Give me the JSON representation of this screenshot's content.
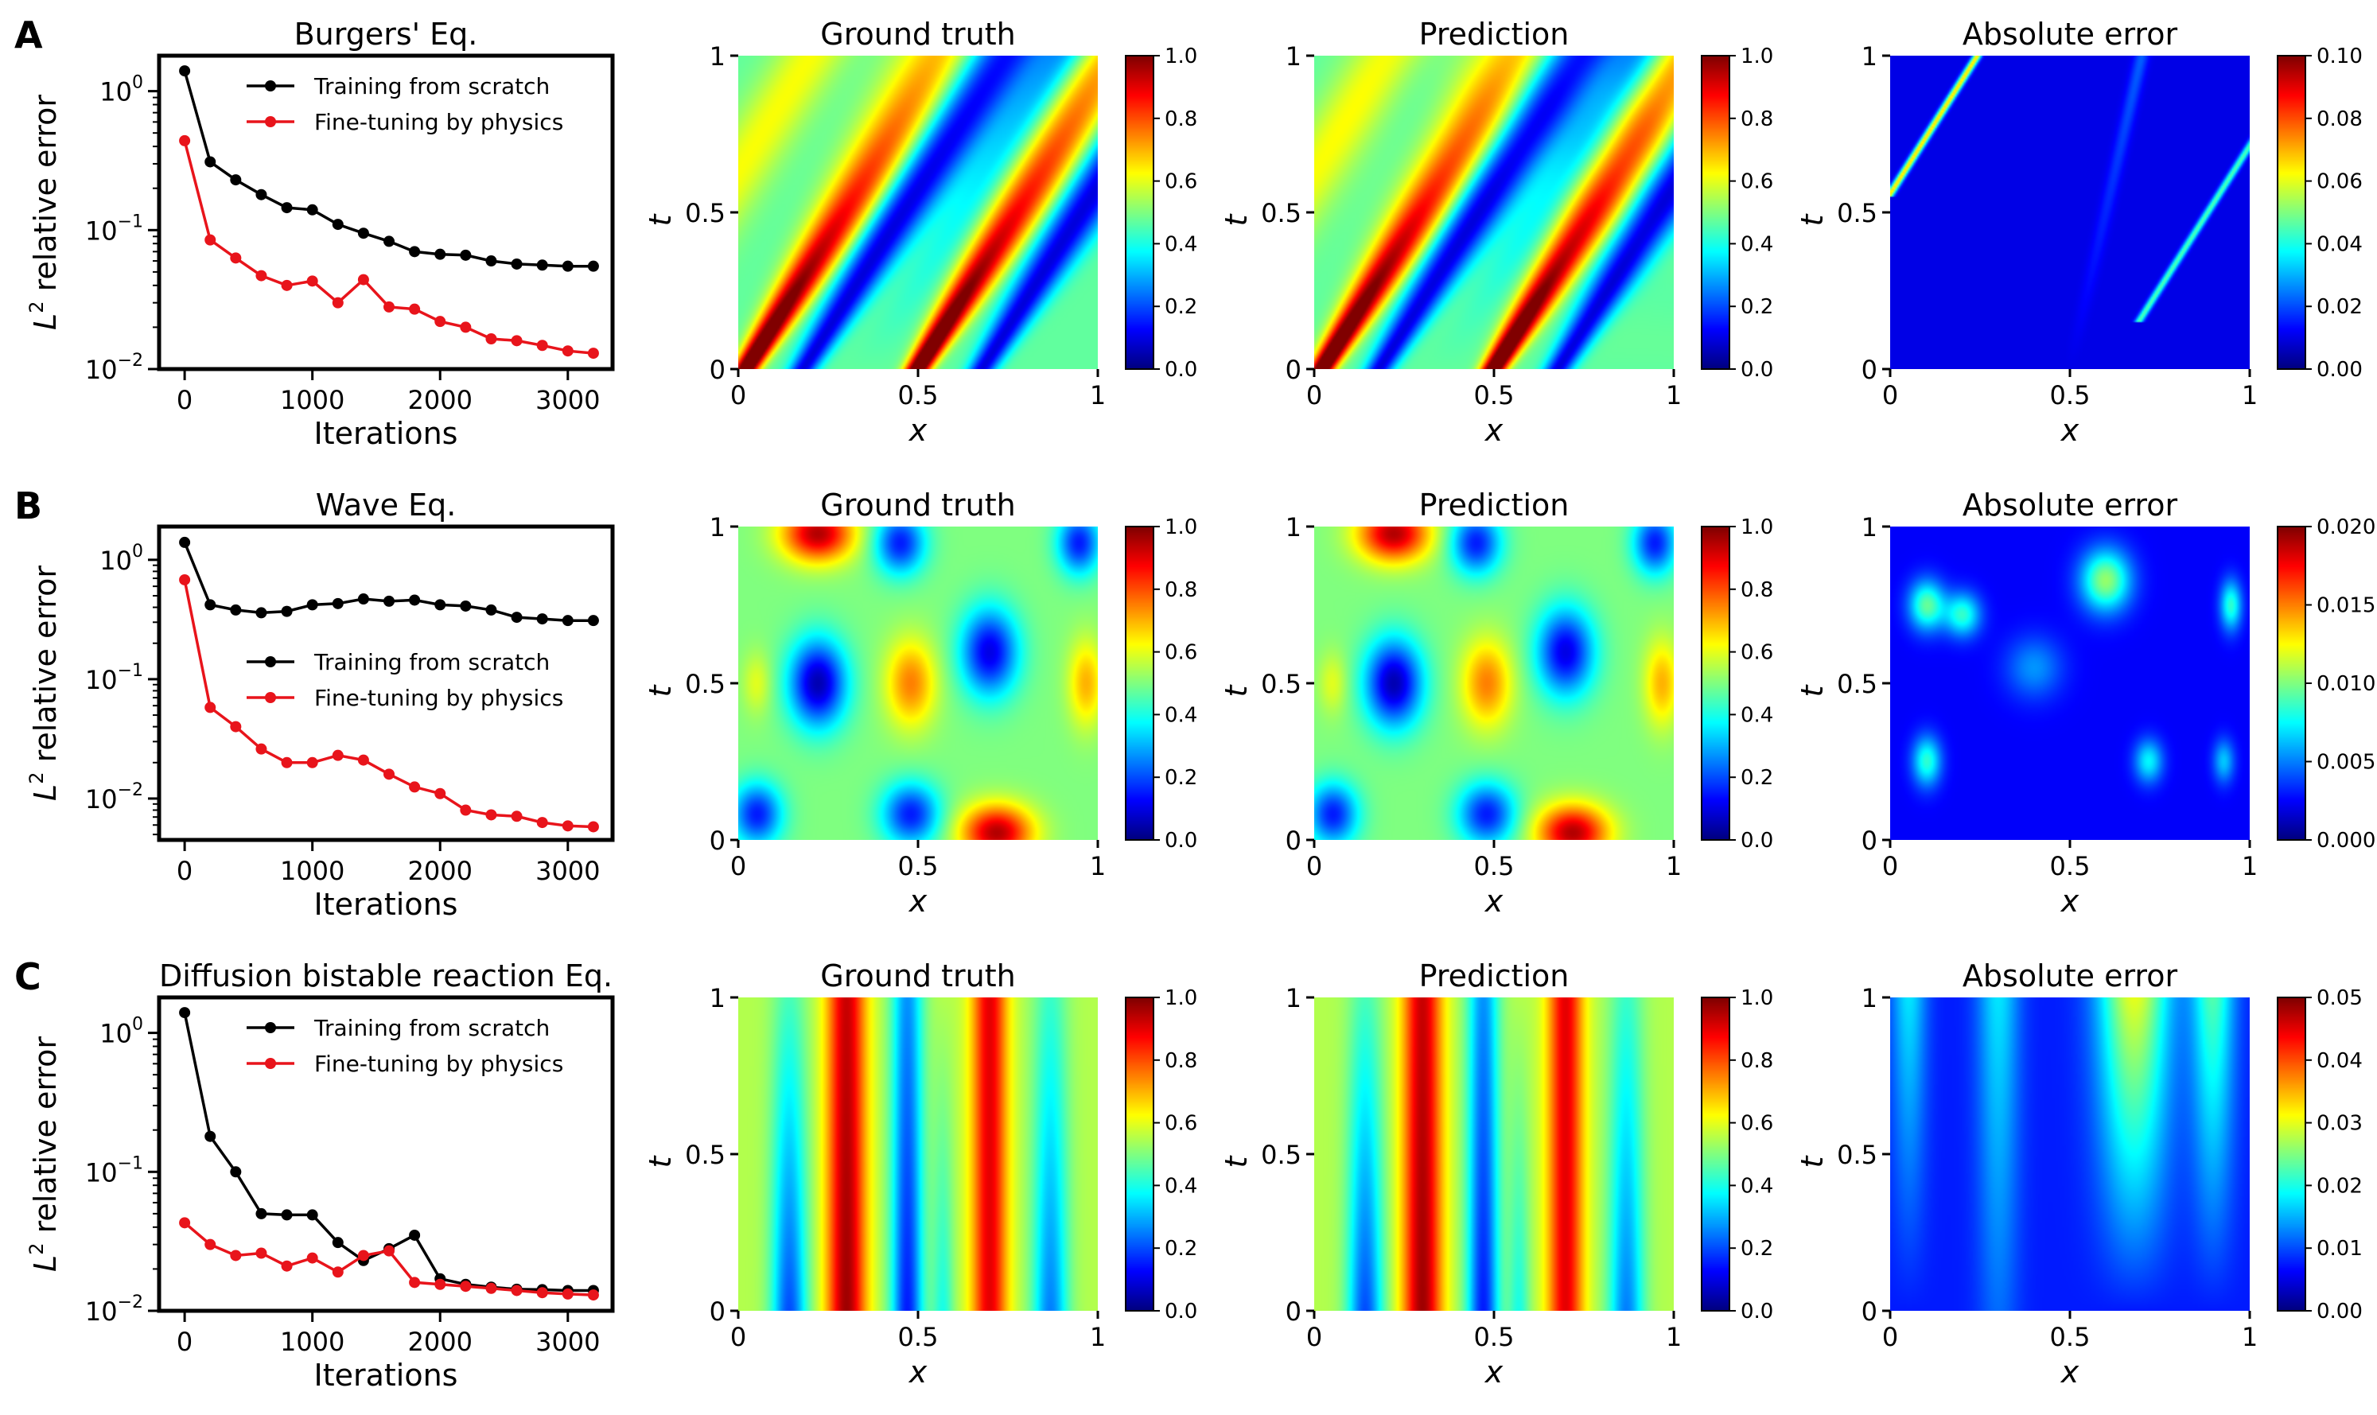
{
  "figure": {
    "rows": [
      {
        "letter": "A",
        "line_title": "Burgers' Eq.",
        "legend_pos": "top-right",
        "pattern": "burgers",
        "cbar_max": [
          1.0,
          1.0,
          0.1
        ],
        "cbar_ticks": [
          [
            "0.0",
            "0.2",
            "0.4",
            "0.6",
            "0.8",
            "1.0"
          ],
          [
            "0.0",
            "0.2",
            "0.4",
            "0.6",
            "0.8",
            "1.0"
          ],
          [
            "0.00",
            "0.02",
            "0.04",
            "0.06",
            "0.08",
            "0.10"
          ]
        ]
      },
      {
        "letter": "B",
        "line_title": "Wave Eq.",
        "legend_pos": "center-right",
        "pattern": "wave",
        "cbar_max": [
          1.0,
          1.0,
          0.02
        ],
        "cbar_ticks": [
          [
            "0.0",
            "0.2",
            "0.4",
            "0.6",
            "0.8",
            "1.0"
          ],
          [
            "0.0",
            "0.2",
            "0.4",
            "0.6",
            "0.8",
            "1.0"
          ],
          [
            "0.000",
            "0.005",
            "0.010",
            "0.015",
            "0.020"
          ]
        ]
      },
      {
        "letter": "C",
        "line_title": "Diffusion bistable reaction Eq.",
        "legend_pos": "top-right",
        "pattern": "diffusion",
        "cbar_max": [
          1.0,
          1.0,
          0.05
        ],
        "cbar_ticks": [
          [
            "0.0",
            "0.2",
            "0.4",
            "0.6",
            "0.8",
            "1.0"
          ],
          [
            "0.0",
            "0.2",
            "0.4",
            "0.6",
            "0.8",
            "1.0"
          ],
          [
            "0.00",
            "0.01",
            "0.02",
            "0.03",
            "0.04",
            "0.05"
          ]
        ]
      }
    ],
    "heatmap_titles": [
      "Ground truth",
      "Prediction",
      "Absolute error"
    ],
    "heatmap_xlabel": "x",
    "heatmap_ylabel": "t",
    "heatmap_ticks": [
      "0",
      "0.5",
      "1"
    ],
    "line_xlabel": "Iterations",
    "line_ylabel_base": "L",
    "line_ylabel_sup": "2",
    "line_ylabel_rest": " relative error",
    "line_xticks": [
      "0",
      "1000",
      "2000",
      "3000"
    ],
    "line_ytick_base": "10",
    "colors": {
      "scratch": "#000000",
      "finetune": "#e8141b"
    }
  },
  "chart_data": [
    {
      "type": "line",
      "title": "Burgers' Eq.",
      "xlabel": "Iterations",
      "ylabel": "L2 relative error",
      "yscale": "log",
      "xlim": [
        -200,
        3350
      ],
      "ylim": [
        0.01,
        1.8
      ],
      "yticks": [
        {
          "value": 1,
          "exp": "0"
        },
        {
          "value": 0.1,
          "exp": "−1"
        },
        {
          "value": 0.01,
          "exp": "−2"
        }
      ],
      "x": [
        0,
        200,
        400,
        600,
        800,
        1000,
        1200,
        1400,
        1600,
        1800,
        2000,
        2200,
        2400,
        2600,
        2800,
        3000,
        3200
      ],
      "series": [
        {
          "name": "Training from scratch",
          "color": "#000000",
          "values": [
            1.4,
            0.31,
            0.23,
            0.18,
            0.145,
            0.14,
            0.11,
            0.095,
            0.083,
            0.07,
            0.067,
            0.066,
            0.06,
            0.057,
            0.056,
            0.055,
            0.055
          ]
        },
        {
          "name": "Fine-tuning by physics",
          "color": "#e8141b",
          "values": [
            0.44,
            0.085,
            0.063,
            0.047,
            0.04,
            0.043,
            0.03,
            0.044,
            0.028,
            0.027,
            0.022,
            0.02,
            0.0165,
            0.016,
            0.0148,
            0.0135,
            0.013
          ]
        }
      ]
    },
    {
      "type": "line",
      "title": "Wave Eq.",
      "xlabel": "Iterations",
      "ylabel": "L2 relative error",
      "yscale": "log",
      "xlim": [
        -200,
        3350
      ],
      "ylim": [
        0.0045,
        1.9
      ],
      "yticks": [
        {
          "value": 1,
          "exp": "0"
        },
        {
          "value": 0.1,
          "exp": "−1"
        },
        {
          "value": 0.01,
          "exp": "−2"
        }
      ],
      "x": [
        0,
        200,
        400,
        600,
        800,
        1000,
        1200,
        1400,
        1600,
        1800,
        2000,
        2200,
        2400,
        2600,
        2800,
        3000,
        3200
      ],
      "series": [
        {
          "name": "Training from scratch",
          "color": "#000000",
          "values": [
            1.4,
            0.42,
            0.38,
            0.36,
            0.37,
            0.42,
            0.43,
            0.47,
            0.45,
            0.46,
            0.42,
            0.41,
            0.38,
            0.33,
            0.32,
            0.31,
            0.31
          ]
        },
        {
          "name": "Fine-tuning by physics",
          "color": "#e8141b",
          "values": [
            0.68,
            0.058,
            0.04,
            0.026,
            0.02,
            0.02,
            0.023,
            0.021,
            0.016,
            0.0125,
            0.011,
            0.008,
            0.0073,
            0.0071,
            0.0063,
            0.0059,
            0.0058
          ]
        }
      ]
    },
    {
      "type": "line",
      "title": "Diffusion bistable reaction Eq.",
      "xlabel": "Iterations",
      "ylabel": "L2 relative error",
      "yscale": "log",
      "xlim": [
        -200,
        3350
      ],
      "ylim": [
        0.01,
        1.8
      ],
      "yticks": [
        {
          "value": 1,
          "exp": "0"
        },
        {
          "value": 0.1,
          "exp": "−1"
        },
        {
          "value": 0.01,
          "exp": "−2"
        }
      ],
      "x": [
        0,
        200,
        400,
        600,
        800,
        1000,
        1200,
        1400,
        1600,
        1800,
        2000,
        2200,
        2400,
        2600,
        2800,
        3000,
        3200
      ],
      "series": [
        {
          "name": "Training from scratch",
          "color": "#000000",
          "values": [
            1.4,
            0.18,
            0.1,
            0.05,
            0.049,
            0.049,
            0.031,
            0.023,
            0.028,
            0.035,
            0.017,
            0.0155,
            0.0148,
            0.0143,
            0.0142,
            0.014,
            0.014
          ]
        },
        {
          "name": "Fine-tuning by physics",
          "color": "#e8141b",
          "values": [
            0.043,
            0.03,
            0.025,
            0.026,
            0.021,
            0.024,
            0.019,
            0.025,
            0.027,
            0.016,
            0.0155,
            0.015,
            0.0145,
            0.014,
            0.0135,
            0.0132,
            0.013
          ]
        }
      ]
    },
    {
      "type": "heatmap",
      "title": "Ground truth",
      "equation": "Burgers' Eq.",
      "xlabel": "x",
      "ylabel": "t",
      "xlim": [
        0,
        1
      ],
      "ylim": [
        0,
        1
      ],
      "colormap": "jet",
      "colorbar_range": [
        0.0,
        1.0
      ]
    },
    {
      "type": "heatmap",
      "title": "Prediction",
      "equation": "Burgers' Eq.",
      "xlabel": "x",
      "ylabel": "t",
      "xlim": [
        0,
        1
      ],
      "ylim": [
        0,
        1
      ],
      "colormap": "jet",
      "colorbar_range": [
        0.0,
        1.0
      ]
    },
    {
      "type": "heatmap",
      "title": "Absolute error",
      "equation": "Burgers' Eq.",
      "xlabel": "x",
      "ylabel": "t",
      "xlim": [
        0,
        1
      ],
      "ylim": [
        0,
        1
      ],
      "colormap": "jet",
      "colorbar_range": [
        0.0,
        0.1
      ]
    },
    {
      "type": "heatmap",
      "title": "Ground truth",
      "equation": "Wave Eq.",
      "xlabel": "x",
      "ylabel": "t",
      "xlim": [
        0,
        1
      ],
      "ylim": [
        0,
        1
      ],
      "colormap": "jet",
      "colorbar_range": [
        0.0,
        1.0
      ]
    },
    {
      "type": "heatmap",
      "title": "Prediction",
      "equation": "Wave Eq.",
      "xlabel": "x",
      "ylabel": "t",
      "xlim": [
        0,
        1
      ],
      "ylim": [
        0,
        1
      ],
      "colormap": "jet",
      "colorbar_range": [
        0.0,
        1.0
      ]
    },
    {
      "type": "heatmap",
      "title": "Absolute error",
      "equation": "Wave Eq.",
      "xlabel": "x",
      "ylabel": "t",
      "xlim": [
        0,
        1
      ],
      "ylim": [
        0,
        1
      ],
      "colormap": "jet",
      "colorbar_range": [
        0.0,
        0.02
      ]
    },
    {
      "type": "heatmap",
      "title": "Ground truth",
      "equation": "Diffusion bistable reaction Eq.",
      "xlabel": "x",
      "ylabel": "t",
      "xlim": [
        0,
        1
      ],
      "ylim": [
        0,
        1
      ],
      "colormap": "jet",
      "colorbar_range": [
        0.0,
        1.0
      ]
    },
    {
      "type": "heatmap",
      "title": "Prediction",
      "equation": "Diffusion bistable reaction Eq.",
      "xlabel": "x",
      "ylabel": "t",
      "xlim": [
        0,
        1
      ],
      "ylim": [
        0,
        1
      ],
      "colormap": "jet",
      "colorbar_range": [
        0.0,
        1.0
      ]
    },
    {
      "type": "heatmap",
      "title": "Absolute error",
      "equation": "Diffusion bistable reaction Eq.",
      "xlabel": "x",
      "ylabel": "t",
      "xlim": [
        0,
        1
      ],
      "ylim": [
        0,
        1
      ],
      "colormap": "jet",
      "colorbar_range": [
        0.0,
        0.05
      ]
    }
  ]
}
